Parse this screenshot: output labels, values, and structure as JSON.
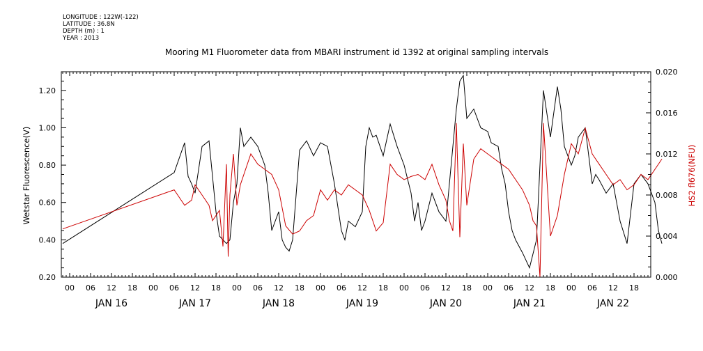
{
  "meta": {
    "longitude": "LONGITUDE : 122W(-122)",
    "latitude": "LATITUDE : 36.8N",
    "depth": "DEPTH (m) : 1",
    "year": "YEAR : 2013"
  },
  "chart_data": {
    "type": "line",
    "title": "Mooring M1 Fluorometer data from MBARI instrument id 1392 at original sampling intervals",
    "ylabel": "Wetstar Fluorescence(V)",
    "y2label": "HS2 fl676(NFU)",
    "xlim": [
      0,
      171
    ],
    "ylim": [
      0.2,
      1.3
    ],
    "y2lim": [
      0.0,
      0.02
    ],
    "left_ticks": [
      "0.20",
      "0.40",
      "0.60",
      "0.80",
      "1.00",
      "1.20"
    ],
    "left_tick_values": [
      0.2,
      0.4,
      0.6,
      0.8,
      1.0,
      1.2
    ],
    "right_ticks": [
      "0.000",
      "0.004",
      "0.008",
      "0.012",
      "0.016",
      "0.020"
    ],
    "right_tick_values": [
      0.0,
      0.004,
      0.008,
      0.012,
      0.016,
      0.02
    ],
    "hour_tick_labels": [
      "00",
      "06",
      "12",
      "18"
    ],
    "days": [
      "JAN 16",
      "JAN 17",
      "JAN 18",
      "JAN 19",
      "JAN 20",
      "JAN 21",
      "JAN 22"
    ],
    "series": [
      {
        "color": "#000000",
        "axis": "left",
        "x": [
          -2,
          30,
          33,
          34,
          35,
          36,
          38,
          40,
          42,
          43,
          45,
          46,
          47,
          48,
          49,
          50,
          52,
          54,
          56,
          57,
          58,
          60,
          61,
          62,
          63,
          64,
          66,
          68,
          70,
          72,
          74,
          76,
          78,
          79,
          80,
          82,
          84,
          85,
          86,
          87,
          88,
          90,
          92,
          94,
          96,
          98,
          99,
          100,
          101,
          102,
          104,
          106,
          108,
          110,
          111,
          112,
          113,
          114,
          116,
          118,
          120,
          121,
          123,
          124,
          125,
          126,
          127,
          128,
          130,
          132,
          134,
          136,
          138,
          140,
          141,
          142,
          143,
          144,
          145,
          146,
          148,
          149,
          150,
          151,
          152,
          154,
          156,
          157,
          158,
          160,
          162,
          164,
          166,
          168,
          169,
          170
        ],
        "y": [
          0.38,
          0.76,
          0.92,
          0.74,
          0.7,
          0.65,
          0.9,
          0.93,
          0.55,
          0.42,
          0.38,
          0.4,
          0.6,
          0.7,
          1.0,
          0.9,
          0.95,
          0.9,
          0.8,
          0.65,
          0.45,
          0.55,
          0.4,
          0.36,
          0.34,
          0.4,
          0.88,
          0.93,
          0.85,
          0.92,
          0.9,
          0.7,
          0.45,
          0.4,
          0.5,
          0.47,
          0.55,
          0.9,
          1.0,
          0.95,
          0.96,
          0.85,
          1.02,
          0.9,
          0.8,
          0.65,
          0.5,
          0.6,
          0.45,
          0.5,
          0.65,
          0.55,
          0.5,
          0.9,
          1.1,
          1.25,
          1.28,
          1.05,
          1.1,
          1.0,
          0.98,
          0.92,
          0.9,
          0.78,
          0.7,
          0.55,
          0.45,
          0.4,
          0.33,
          0.25,
          0.4,
          1.2,
          0.95,
          1.22,
          1.1,
          0.9,
          0.85,
          0.8,
          0.85,
          0.95,
          1.0,
          0.85,
          0.7,
          0.75,
          0.72,
          0.65,
          0.7,
          0.6,
          0.5,
          0.38,
          0.7,
          0.75,
          0.7,
          0.6,
          0.45,
          0.38
        ]
      },
      {
        "color": "#cc0000",
        "axis": "right",
        "x": [
          -2,
          30,
          31,
          33,
          35,
          36,
          38,
          40,
          41,
          43,
          44,
          45,
          45.5,
          46,
          47,
          48,
          49,
          50,
          52,
          54,
          56,
          58,
          60,
          62,
          64,
          66,
          68,
          70,
          72,
          74,
          76,
          78,
          80,
          82,
          84,
          86,
          88,
          90,
          92,
          94,
          96,
          98,
          100,
          102,
          104,
          106,
          108,
          109,
          110,
          111,
          112,
          113,
          114,
          116,
          118,
          120,
          122,
          124,
          126,
          128,
          130,
          132,
          133,
          134,
          135,
          136,
          138,
          140,
          142,
          144,
          146,
          148,
          150,
          152,
          154,
          156,
          158,
          160,
          162,
          164,
          166,
          168,
          170
        ],
        "y": [
          0.0047,
          0.0085,
          0.008,
          0.007,
          0.0075,
          0.009,
          0.008,
          0.007,
          0.0055,
          0.0065,
          0.003,
          0.011,
          0.002,
          0.008,
          0.012,
          0.007,
          0.009,
          0.01,
          0.012,
          0.011,
          0.0105,
          0.01,
          0.0085,
          0.005,
          0.0042,
          0.0045,
          0.0055,
          0.006,
          0.0085,
          0.0075,
          0.0085,
          0.008,
          0.009,
          0.0085,
          0.008,
          0.0065,
          0.0045,
          0.0053,
          0.011,
          0.01,
          0.0095,
          0.0098,
          0.01,
          0.0095,
          0.011,
          0.009,
          0.0075,
          0.0055,
          0.0045,
          0.015,
          0.0039,
          0.013,
          0.007,
          0.0115,
          0.0125,
          0.012,
          0.0115,
          0.011,
          0.0105,
          0.0095,
          0.0085,
          0.007,
          0.0055,
          0.005,
          0.0,
          0.015,
          0.004,
          0.006,
          0.01,
          0.013,
          0.012,
          0.0145,
          0.012,
          0.011,
          0.01,
          0.009,
          0.0095,
          0.0085,
          0.009,
          0.01,
          0.0095,
          0.0105,
          0.0115
        ]
      }
    ]
  }
}
